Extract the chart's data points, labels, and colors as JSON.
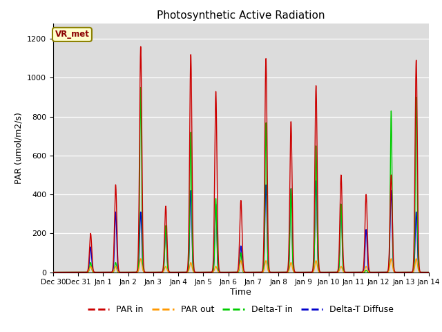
{
  "title": "Photosynthetic Active Radiation",
  "ylabel": "PAR (umol/m2/s)",
  "xlabel": "Time",
  "ylim": [
    0,
    1280
  ],
  "yticks": [
    0,
    200,
    400,
    600,
    800,
    1000,
    1200
  ],
  "bg_color": "#dcdcdc",
  "annotation_text": "VR_met",
  "legend_labels": [
    "PAR in",
    "PAR out",
    "Delta-T in",
    "Delta-T Diffuse"
  ],
  "legend_colors": [
    "#cc0000",
    "#ff9900",
    "#00cc00",
    "#0000cc"
  ],
  "x_tick_labels": [
    "Dec 30",
    "Dec 31",
    "Jan 1",
    "Jan 2",
    "Jan 3",
    "Jan 4",
    "Jan 5",
    "Jan 6",
    "Jan 7",
    "Jan 8",
    "Jan 9",
    "Jan 10",
    "Jan 11",
    "Jan 12",
    "Jan 13",
    "Jan 14"
  ],
  "num_days": 16,
  "day_peaks_par_in": [
    0,
    200,
    450,
    1160,
    340,
    1120,
    930,
    370,
    1100,
    775,
    960,
    500,
    400,
    500,
    1090,
    0
  ],
  "day_peaks_par_out": [
    0,
    30,
    30,
    70,
    30,
    50,
    30,
    60,
    60,
    50,
    60,
    30,
    30,
    70,
    70,
    0
  ],
  "day_peaks_delta_in": [
    0,
    50,
    50,
    950,
    240,
    720,
    380,
    100,
    770,
    430,
    650,
    350,
    10,
    830,
    900,
    0
  ],
  "day_peaks_delta_dif": [
    0,
    130,
    310,
    310,
    225,
    420,
    350,
    135,
    450,
    430,
    470,
    350,
    220,
    420,
    310,
    0
  ]
}
